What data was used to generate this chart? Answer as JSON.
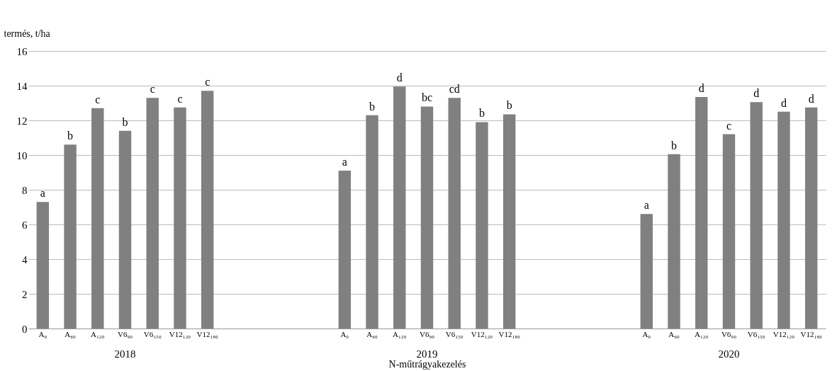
{
  "chart_data": {
    "type": "bar",
    "ylabel": "termés, t/ha",
    "xlabel": "N-műtrágyakezelés",
    "categories": [
      "A₀",
      "A₆₀",
      "A₁₂₀",
      "V6₉₀",
      "V6₁₅₀",
      "V12₁₂₀",
      "V12₁₈₀",
      null,
      null,
      null,
      null,
      "A₀",
      "A₆₀",
      "A₁₂₀",
      "V6₉₀",
      "V6₁₅₀",
      "V12₁₂₀",
      "V12₁₈₀",
      null,
      null,
      null,
      null,
      "A₀",
      "A₆₀",
      "A₁₂₀",
      "V6₉₀",
      "V6₁₅₀",
      "V12₁₂₀",
      "V12₁₈₀"
    ],
    "values": [
      7.3,
      10.6,
      12.7,
      11.4,
      13.3,
      12.75,
      13.7,
      null,
      null,
      null,
      null,
      9.1,
      12.3,
      13.95,
      12.8,
      13.3,
      11.9,
      12.35,
      null,
      null,
      null,
      null,
      6.6,
      10.05,
      13.35,
      11.2,
      13.05,
      12.5,
      12.75
    ],
    "value_labels": [
      "a",
      "b",
      "c",
      "b",
      "c",
      "c",
      "c",
      null,
      null,
      null,
      null,
      "a",
      "b",
      "d",
      "bc",
      "cd",
      "b",
      "b",
      null,
      null,
      null,
      null,
      "a",
      "b",
      "d",
      "c",
      "d",
      "d",
      "d"
    ],
    "color": "#808080",
    "ylim": [
      0,
      16
    ],
    "yticks": [
      0,
      2,
      4,
      6,
      8,
      10,
      12,
      14,
      16
    ],
    "grid": "y",
    "annotations": [
      "2018",
      "2019",
      "2020"
    ]
  }
}
